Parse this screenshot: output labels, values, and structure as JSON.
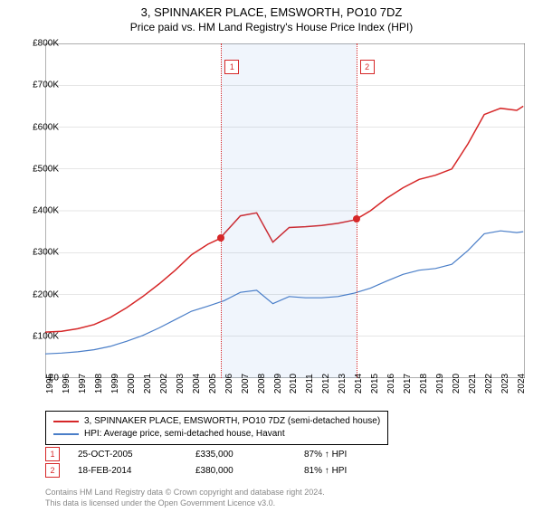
{
  "title": "3, SPINNAKER PLACE, EMSWORTH, PO10 7DZ",
  "subtitle": "Price paid vs. HM Land Registry's House Price Index (HPI)",
  "chart": {
    "type": "line",
    "background_color": "#ffffff",
    "grid_color": "#cccccc",
    "band_color": "rgba(70,130,220,0.08)",
    "xlim": [
      1995,
      2024.5
    ],
    "ylim": [
      0,
      800000
    ],
    "ytick_step": 100000,
    "y_tick_labels": [
      "£0",
      "£100K",
      "£200K",
      "£300K",
      "£400K",
      "£500K",
      "£600K",
      "£700K",
      "£800K"
    ],
    "x_ticks": [
      1995,
      1996,
      1997,
      1998,
      1999,
      2000,
      2001,
      2002,
      2003,
      2004,
      2005,
      2006,
      2007,
      2008,
      2009,
      2010,
      2011,
      2012,
      2013,
      2014,
      2015,
      2016,
      2017,
      2018,
      2019,
      2020,
      2021,
      2022,
      2023,
      2024
    ],
    "series": [
      {
        "name": "3, SPINNAKER PLACE, EMSWORTH, PO10 7DZ (semi-detached house)",
        "color": "#d62728",
        "line_width": 1.5,
        "x": [
          1995,
          1996,
          1997,
          1998,
          1999,
          2000,
          2001,
          2002,
          2003,
          2004,
          2005,
          2005.82,
          2006,
          2007,
          2008,
          2009,
          2010,
          2011,
          2012,
          2013,
          2014,
          2014.13,
          2015,
          2016,
          2017,
          2018,
          2019,
          2020,
          2021,
          2022,
          2023,
          2024,
          2024.4
        ],
        "y": [
          110000,
          112000,
          118000,
          128000,
          145000,
          168000,
          195000,
          225000,
          258000,
          295000,
          320000,
          335000,
          345000,
          388000,
          395000,
          325000,
          360000,
          362000,
          365000,
          370000,
          378000,
          380000,
          400000,
          430000,
          455000,
          475000,
          485000,
          500000,
          560000,
          630000,
          645000,
          640000,
          650000
        ]
      },
      {
        "name": "HPI: Average price, semi-detached house, Havant",
        "color": "#4a7ec8",
        "line_width": 1.2,
        "x": [
          1995,
          1996,
          1997,
          1998,
          1999,
          2000,
          2001,
          2002,
          2003,
          2004,
          2005,
          2006,
          2007,
          2008,
          2009,
          2010,
          2011,
          2012,
          2013,
          2014,
          2015,
          2016,
          2017,
          2018,
          2019,
          2020,
          2021,
          2022,
          2023,
          2024,
          2024.4
        ],
        "y": [
          58000,
          60000,
          63000,
          68000,
          76000,
          88000,
          102000,
          120000,
          140000,
          160000,
          172000,
          185000,
          205000,
          210000,
          178000,
          195000,
          192000,
          192000,
          195000,
          203000,
          215000,
          232000,
          248000,
          258000,
          262000,
          272000,
          305000,
          345000,
          352000,
          348000,
          350000
        ]
      }
    ],
    "markers": [
      {
        "label": "1",
        "x": 2005.82,
        "y": 335000,
        "date": "25-OCT-2005",
        "price": "£335,000",
        "pct": "87%",
        "arrow": "↑",
        "suffix": "HPI"
      },
      {
        "label": "2",
        "x": 2014.13,
        "y": 380000,
        "date": "18-FEB-2014",
        "price": "£380,000",
        "pct": "81%",
        "arrow": "↑",
        "suffix": "HPI"
      }
    ],
    "marker_color": "#d62728",
    "label_fontsize": 10
  },
  "legend": {
    "items": [
      {
        "color": "#d62728",
        "label": "3, SPINNAKER PLACE, EMSWORTH, PO10 7DZ (semi-detached house)"
      },
      {
        "color": "#4a7ec8",
        "label": "HPI: Average price, semi-detached house, Havant"
      }
    ]
  },
  "footer_line1": "Contains HM Land Registry data © Crown copyright and database right 2024.",
  "footer_line2": "This data is licensed under the Open Government Licence v3.0."
}
